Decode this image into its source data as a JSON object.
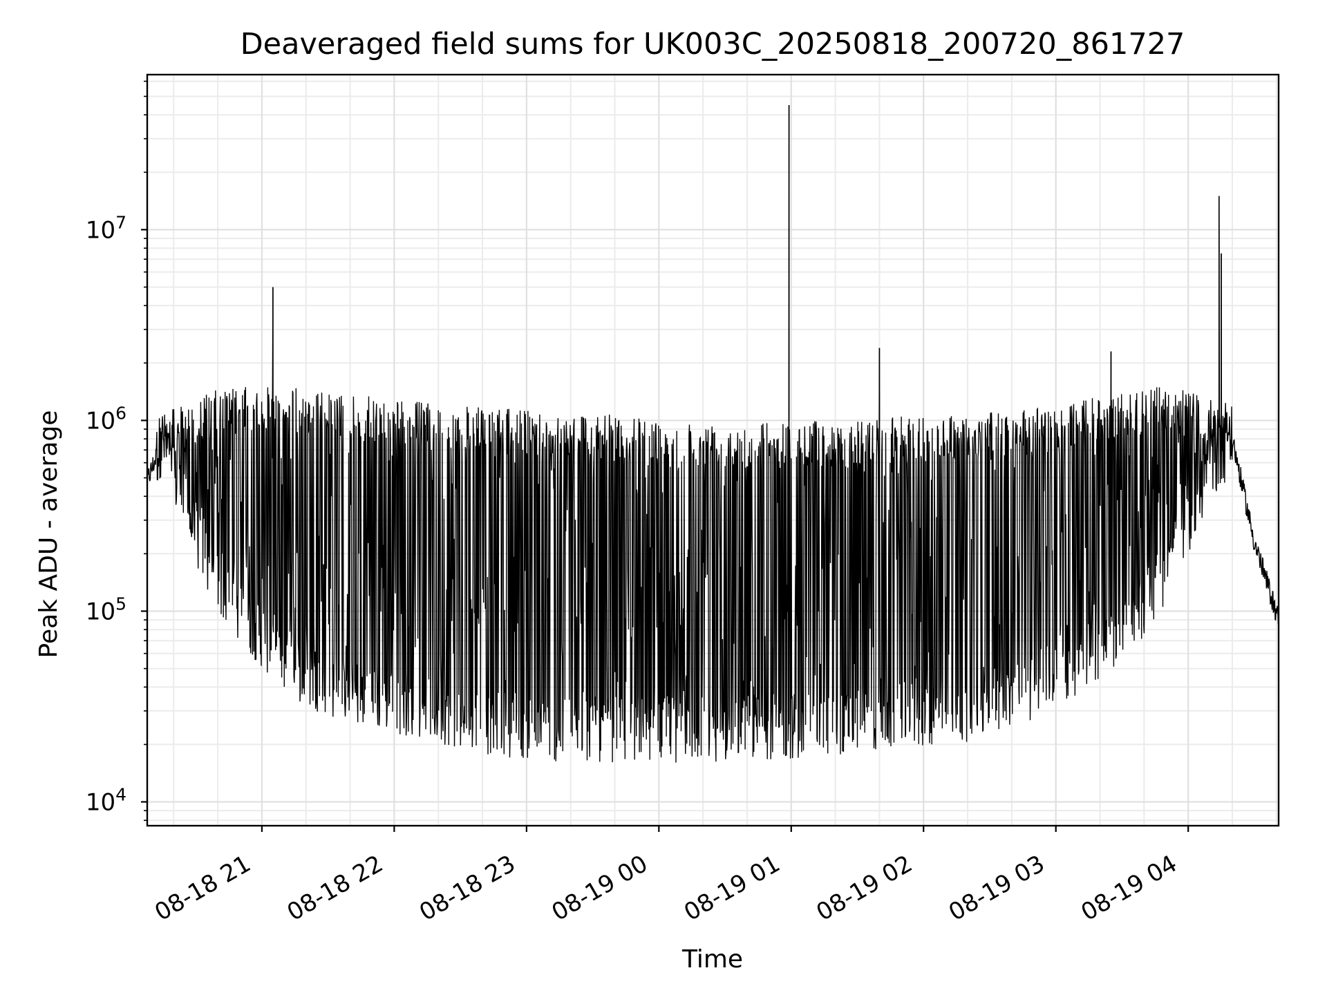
{
  "chart_data": {
    "type": "line",
    "title": "Deaveraged field sums for UK003C_20250818_200720_861727",
    "xlabel": "Time",
    "ylabel": "Peak ADU - average",
    "yscale": "log",
    "ylim": [
      7500,
      65000000
    ],
    "xlim": [
      "08-18 20:08",
      "08-19 04:41"
    ],
    "grid": true,
    "line_color": "#000000",
    "x_ticks": [
      "08-18 21",
      "08-18 22",
      "08-18 23",
      "08-19 00",
      "08-19 01",
      "08-19 02",
      "08-19 03",
      "08-19 04"
    ],
    "y_ticks": [
      {
        "base": "10",
        "exp": "4",
        "value": 10000
      },
      {
        "base": "10",
        "exp": "5",
        "value": 100000
      },
      {
        "base": "10",
        "exp": "6",
        "value": 1000000
      },
      {
        "base": "10",
        "exp": "7",
        "value": 10000000
      }
    ],
    "series": [
      {
        "envelope": {
          "x": [
            "08-18 20:08",
            "08-18 20:15",
            "08-18 20:25",
            "08-18 20:35",
            "08-18 20:45",
            "08-18 21:00",
            "08-18 21:15",
            "08-18 21:30",
            "08-18 21:45",
            "08-18 22:00",
            "08-18 22:15",
            "08-18 22:30",
            "08-18 22:45",
            "08-18 23:00",
            "08-18 23:15",
            "08-18 23:30",
            "08-18 23:45",
            "08-19 00:00",
            "08-19 00:15",
            "08-19 00:30",
            "08-19 00:45",
            "08-19 01:00",
            "08-19 01:15",
            "08-19 01:30",
            "08-19 01:45",
            "08-19 02:00",
            "08-19 02:15",
            "08-19 02:30",
            "08-19 02:45",
            "08-19 03:00",
            "08-19 03:15",
            "08-19 03:30",
            "08-19 03:45",
            "08-19 04:00",
            "08-19 04:10",
            "08-19 04:20",
            "08-19 04:30",
            "08-19 04:41"
          ],
          "high": [
            550000,
            1100000,
            1200000,
            1400000,
            1500000,
            1500000,
            1500000,
            1400000,
            1350000,
            1300000,
            1250000,
            1200000,
            1150000,
            1150000,
            1100000,
            1100000,
            1050000,
            1000000,
            1000000,
            1000000,
            1000000,
            1000000,
            1000000,
            1000000,
            1050000,
            1050000,
            1100000,
            1100000,
            1150000,
            1200000,
            1300000,
            1400000,
            1500000,
            1450000,
            1300000,
            1250000,
            300000,
            90000
          ],
          "baseline": [
            480000,
            800000,
            350000,
            180000,
            120000,
            75000,
            50000,
            42000,
            37000,
            34000,
            32000,
            28000,
            26000,
            25000,
            24000,
            24000,
            24000,
            24000,
            24000,
            24000,
            25000,
            25000,
            26000,
            27000,
            28000,
            29000,
            30000,
            33000,
            38000,
            46000,
            60000,
            80000,
            120000,
            300000,
            550000,
            800000,
            230000,
            90000
          ]
        },
        "spikes": [
          {
            "x": "08-18 21:05",
            "y": 5000000
          },
          {
            "x": "08-19 00:59",
            "y": 45000000
          },
          {
            "x": "08-19 01:40",
            "y": 2400000
          },
          {
            "x": "08-19 03:25",
            "y": 2300000
          },
          {
            "x": "08-19 04:14",
            "y": 15000000
          },
          {
            "x": "08-19 04:15",
            "y": 7500000
          }
        ]
      }
    ]
  }
}
